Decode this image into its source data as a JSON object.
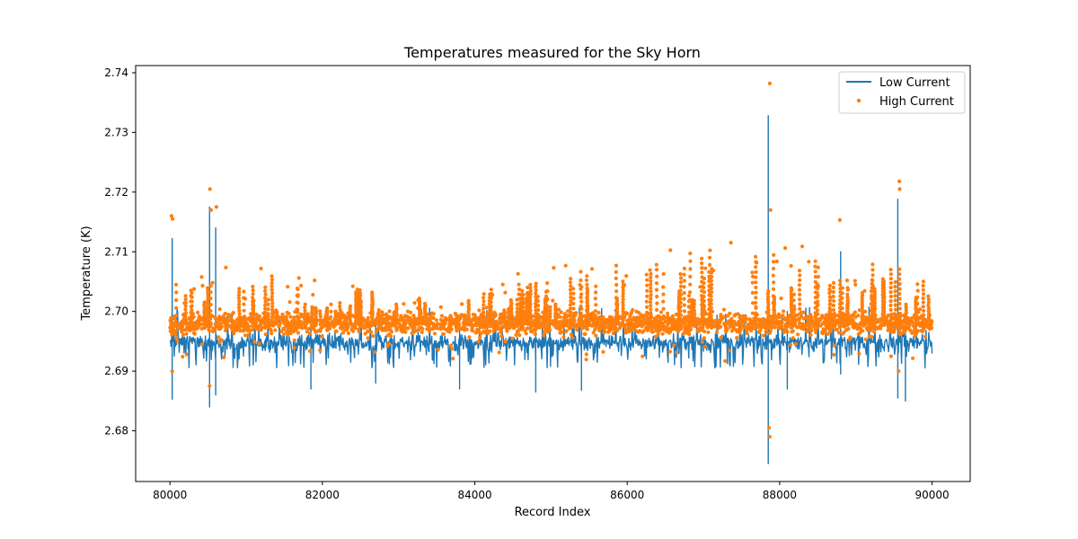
{
  "chart_data": {
    "type": "line+scatter",
    "title": "Temperatures measured for the Sky Horn",
    "xlabel": "Record Index",
    "ylabel": "Temperature (K)",
    "xlim": [
      79550,
      90500
    ],
    "ylim": [
      2.6715,
      2.7412
    ],
    "x_ticks": [
      80000,
      82000,
      84000,
      86000,
      88000,
      90000
    ],
    "x_tick_labels": [
      "80000",
      "82000",
      "84000",
      "86000",
      "88000",
      "90000"
    ],
    "y_ticks": [
      2.68,
      2.69,
      2.7,
      2.71,
      2.72,
      2.73,
      2.74
    ],
    "y_tick_labels": [
      "2.68",
      "2.69",
      "2.70",
      "2.71",
      "2.72",
      "2.73",
      "2.74"
    ],
    "grid": false,
    "legend_position": "upper right",
    "colors": {
      "low": "#1f77b4",
      "high": "#ff7f0e"
    },
    "x_start": 80000,
    "x_end": 90000,
    "series": [
      {
        "name": "Low Current",
        "kind": "line",
        "baseline": 2.6948,
        "baseline_jitter": 0.0009,
        "low_dip_band": [
          2.6905,
          2.6935
        ],
        "extremes": [
          {
            "x": 80030,
            "min": 2.6853,
            "max": 2.7122
          },
          {
            "x": 80520,
            "min": 2.684,
            "max": 2.7175
          },
          {
            "x": 80600,
            "min": 2.686,
            "max": 2.714
          },
          {
            "x": 81850,
            "min": 2.687,
            "max": 2.7
          },
          {
            "x": 82700,
            "min": 2.688,
            "max": 2.698
          },
          {
            "x": 83800,
            "min": 2.687,
            "max": 2.6975
          },
          {
            "x": 84800,
            "min": 2.6865,
            "max": 2.698
          },
          {
            "x": 85400,
            "min": 2.6868,
            "max": 2.6985
          },
          {
            "x": 87850,
            "min": 2.6745,
            "max": 2.7328
          },
          {
            "x": 88100,
            "min": 2.687,
            "max": 2.7
          },
          {
            "x": 88800,
            "min": 2.6895,
            "max": 2.71
          },
          {
            "x": 89550,
            "min": 2.6855,
            "max": 2.7188
          },
          {
            "x": 89650,
            "min": 2.685,
            "max": 2.701
          }
        ]
      },
      {
        "name": "High Current",
        "kind": "scatter",
        "baseline": 2.698,
        "baseline_jitter": 0.0012,
        "burst_envelope": [
          {
            "x": 80000,
            "top": 2.706
          },
          {
            "x": 81000,
            "top": 2.708
          },
          {
            "x": 82000,
            "top": 2.705
          },
          {
            "x": 83000,
            "top": 2.7035
          },
          {
            "x": 83800,
            "top": 2.701
          },
          {
            "x": 84200,
            "top": 2.705
          },
          {
            "x": 85000,
            "top": 2.708
          },
          {
            "x": 86000,
            "top": 2.71
          },
          {
            "x": 86800,
            "top": 2.7115
          },
          {
            "x": 87500,
            "top": 2.712
          },
          {
            "x": 88000,
            "top": 2.712
          },
          {
            "x": 89000,
            "top": 2.709
          },
          {
            "x": 90000,
            "top": 2.708
          }
        ],
        "outliers": [
          {
            "x": 80020,
            "y": 2.716
          },
          {
            "x": 80035,
            "y": 2.7155
          },
          {
            "x": 80030,
            "y": 2.69
          },
          {
            "x": 80525,
            "y": 2.7205
          },
          {
            "x": 80540,
            "y": 2.717
          },
          {
            "x": 80610,
            "y": 2.7175
          },
          {
            "x": 80520,
            "y": 2.6875
          },
          {
            "x": 87870,
            "y": 2.7382
          },
          {
            "x": 87880,
            "y": 2.717
          },
          {
            "x": 87860,
            "y": 2.6805
          },
          {
            "x": 87870,
            "y": 2.679
          },
          {
            "x": 88790,
            "y": 2.7153
          },
          {
            "x": 89570,
            "y": 2.7218
          },
          {
            "x": 89575,
            "y": 2.7205
          },
          {
            "x": 89560,
            "y": 2.69
          }
        ]
      }
    ]
  }
}
